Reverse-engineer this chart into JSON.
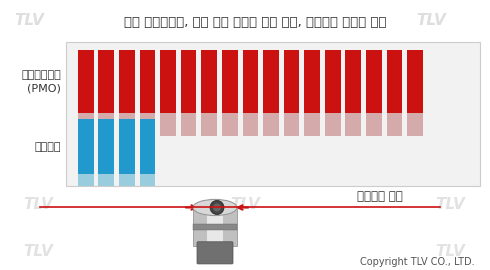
{
  "title": "같은 플로트에서, 최고 사용 압력과 배출 능력, 오리피스 지름의 관계",
  "label_pmo": "최고사용압력\n(PMO)",
  "label_discharge": "배출능력",
  "label_orifice": "오리피스 지름",
  "copyright": "Copyright TLV CO., LTD.",
  "tlv_watermark": "TLV",
  "num_red_bars": 17,
  "num_blue_bars": 4,
  "red_bar_color": "#cc1111",
  "red_bar_shadow": "#d4aaaa",
  "blue_bar_color": "#2299cc",
  "blue_bar_shadow": "#99ccdd",
  "background_color": "#ffffff",
  "box_facecolor": "#f2f2f2",
  "box_edgecolor": "#cccccc",
  "title_fontsize": 9.5,
  "label_fontsize": 8,
  "watermark_fontsize": 11,
  "copyright_fontsize": 7
}
